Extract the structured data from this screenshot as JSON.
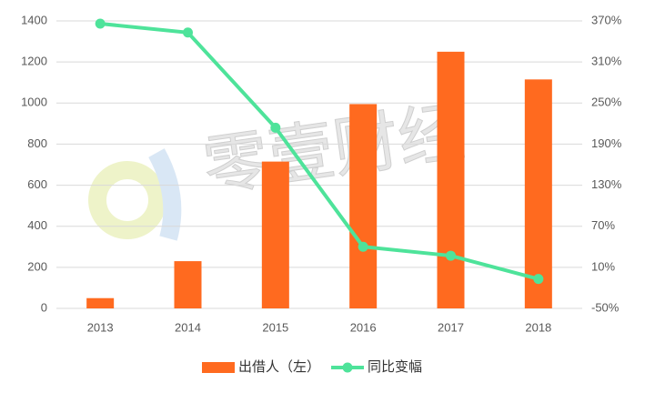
{
  "chart_data": {
    "type": "bar_line",
    "watermark": "零壹财经",
    "categories": [
      "2013",
      "2014",
      "2015",
      "2016",
      "2017",
      "2018"
    ],
    "series": [
      {
        "name": "出借人（左）",
        "type": "bar",
        "color": "#ff6a1f",
        "values": [
          50,
          230,
          715,
          995,
          1250,
          1115
        ]
      },
      {
        "name": "同比变幅",
        "type": "line",
        "axis": "y2",
        "color": "#4ee39a",
        "values": [
          366,
          353,
          214,
          40,
          27,
          -7
        ]
      }
    ],
    "ylim": [
      0,
      1400
    ],
    "yticks": [
      0,
      200,
      400,
      600,
      800,
      1000,
      1200,
      1400
    ],
    "y2lim": [
      -50,
      370
    ],
    "y2ticks": [
      {
        "value": -50,
        "label": "-50%"
      },
      {
        "value": 10,
        "label": "10%"
      },
      {
        "value": 70,
        "label": "70%"
      },
      {
        "value": 130,
        "label": "130%"
      },
      {
        "value": 190,
        "label": "190%"
      },
      {
        "value": 250,
        "label": "250%"
      },
      {
        "value": 310,
        "label": "310%"
      },
      {
        "value": 370,
        "label": "370%"
      }
    ],
    "grid": true,
    "legend": "bottom"
  }
}
